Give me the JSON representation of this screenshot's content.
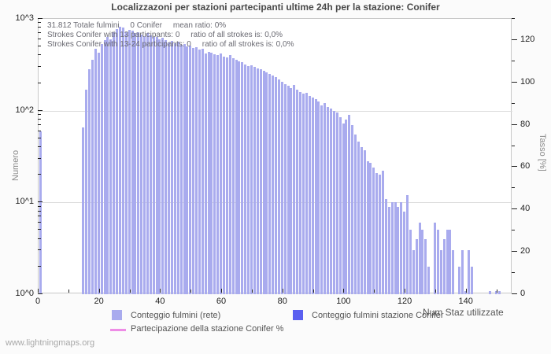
{
  "page": {
    "footer": "www.lightningmaps.org"
  },
  "chart_data": {
    "type": "bar",
    "title": "Localizzazoni per stazioni partecipanti ultime 24h per la stazione: Conifer",
    "annotations": [
      "31.812 Totale fulmini     0 Conifer     mean ratio: 0%",
      "Strokes Conifer with 13 participants: 0     ratio of all strokes is: 0,0%",
      "Strokes Conifer with 13-24 participants: 0     ratio of all strokes is: 0,0%"
    ],
    "xlabel": "Num Staz utilizzate",
    "ylabel_left": "Numero",
    "ylabel_right": "Tasso [%]",
    "x_axis": {
      "min": 0,
      "max": 155,
      "major_ticks": [
        0,
        20,
        40,
        60,
        80,
        100,
        120,
        140
      ],
      "minor_tick_step": 10
    },
    "y_left_axis": {
      "scale": "log10",
      "min": 1,
      "max": 1000,
      "tick_labels": [
        "10^3",
        "10^2",
        "10^1",
        "10^0"
      ],
      "tick_exponents": [
        3,
        2,
        1,
        0
      ]
    },
    "y_right_axis": {
      "min": 0,
      "max": 130,
      "major_ticks": [
        120,
        100,
        80,
        60,
        40,
        20,
        0
      ],
      "minor_tick_step": 10
    },
    "grid": "horizontal decade gridlines only",
    "legend_position": "bottom",
    "colors": {
      "net_bar": "#a9abee",
      "station_bar": "#5a5ff0",
      "participation_line": "#ee8ce6"
    },
    "series": [
      {
        "name": "Conteggio fulmini (rete)",
        "type": "bar",
        "color": "#a9abee",
        "points": [
          [
            0,
            60
          ],
          [
            14,
            65
          ],
          [
            15,
            170
          ],
          [
            16,
            280
          ],
          [
            17,
            360
          ],
          [
            18,
            470
          ],
          [
            19,
            430
          ],
          [
            20,
            530
          ],
          [
            21,
            590
          ],
          [
            22,
            640
          ],
          [
            23,
            600
          ],
          [
            24,
            710
          ],
          [
            25,
            780
          ],
          [
            26,
            820
          ],
          [
            27,
            800
          ],
          [
            28,
            710
          ],
          [
            29,
            760
          ],
          [
            30,
            740
          ],
          [
            31,
            700
          ],
          [
            32,
            720
          ],
          [
            33,
            680
          ],
          [
            34,
            650
          ],
          [
            35,
            700
          ],
          [
            36,
            660
          ],
          [
            37,
            630
          ],
          [
            38,
            640
          ],
          [
            39,
            600
          ],
          [
            40,
            620
          ],
          [
            41,
            590
          ],
          [
            42,
            550
          ],
          [
            43,
            570
          ],
          [
            44,
            540
          ],
          [
            45,
            560
          ],
          [
            46,
            520
          ],
          [
            47,
            530
          ],
          [
            48,
            500
          ],
          [
            49,
            510
          ],
          [
            50,
            480
          ],
          [
            51,
            490
          ],
          [
            52,
            460
          ],
          [
            53,
            470
          ],
          [
            54,
            420
          ],
          [
            55,
            440
          ],
          [
            56,
            430
          ],
          [
            57,
            410
          ],
          [
            58,
            400
          ],
          [
            59,
            420
          ],
          [
            60,
            390
          ],
          [
            61,
            380
          ],
          [
            62,
            400
          ],
          [
            63,
            370
          ],
          [
            64,
            355
          ],
          [
            65,
            345
          ],
          [
            66,
            335
          ],
          [
            67,
            320
          ],
          [
            68,
            305
          ],
          [
            69,
            310
          ],
          [
            70,
            300
          ],
          [
            71,
            290
          ],
          [
            72,
            280
          ],
          [
            73,
            270
          ],
          [
            74,
            260
          ],
          [
            75,
            250
          ],
          [
            76,
            240
          ],
          [
            77,
            230
          ],
          [
            78,
            220
          ],
          [
            79,
            205
          ],
          [
            80,
            195
          ],
          [
            81,
            185
          ],
          [
            82,
            175
          ],
          [
            83,
            190
          ],
          [
            84,
            170
          ],
          [
            85,
            160
          ],
          [
            86,
            152
          ],
          [
            87,
            155
          ],
          [
            88,
            145
          ],
          [
            89,
            140
          ],
          [
            90,
            133
          ],
          [
            91,
            125
          ],
          [
            92,
            115
          ],
          [
            93,
            120
          ],
          [
            94,
            110
          ],
          [
            95,
            105
          ],
          [
            96,
            100
          ],
          [
            97,
            95
          ],
          [
            98,
            85
          ],
          [
            99,
            73
          ],
          [
            100,
            80
          ],
          [
            101,
            90
          ],
          [
            102,
            70
          ],
          [
            103,
            55
          ],
          [
            104,
            46
          ],
          [
            105,
            40
          ],
          [
            106,
            37
          ],
          [
            107,
            28
          ],
          [
            108,
            27
          ],
          [
            109,
            24
          ],
          [
            110,
            21
          ],
          [
            111,
            20
          ],
          [
            112,
            22
          ],
          [
            113,
            11
          ],
          [
            114,
            9
          ],
          [
            115,
            10
          ],
          [
            116,
            10
          ],
          [
            117,
            9
          ],
          [
            118,
            10
          ],
          [
            119,
            8
          ],
          [
            120,
            12
          ],
          [
            121,
            5
          ],
          [
            122,
            3
          ],
          [
            123,
            4
          ],
          [
            124,
            6
          ],
          [
            125,
            5
          ],
          [
            126,
            4
          ],
          [
            127,
            2
          ],
          [
            129,
            6
          ],
          [
            130,
            5
          ],
          [
            131,
            3
          ],
          [
            132,
            4
          ],
          [
            133,
            5
          ],
          [
            134,
            5
          ],
          [
            135,
            3
          ],
          [
            137,
            2
          ],
          [
            138,
            3
          ],
          [
            139,
            1
          ],
          [
            140,
            3
          ],
          [
            141,
            2
          ],
          [
            147,
            1
          ],
          [
            149,
            1
          ],
          [
            150,
            1
          ]
        ]
      },
      {
        "name": "Conteggio fulmini stazione Conifer",
        "type": "bar",
        "color": "#5a5ff0",
        "points": []
      },
      {
        "name": "Partecipazione della stazione Conifer %",
        "type": "line",
        "color": "#ee8ce6",
        "constant_percent": 0,
        "points": []
      }
    ],
    "stats": {
      "total_strokes": "31.812",
      "station_strokes": 0,
      "mean_ratio_percent": 0
    }
  }
}
